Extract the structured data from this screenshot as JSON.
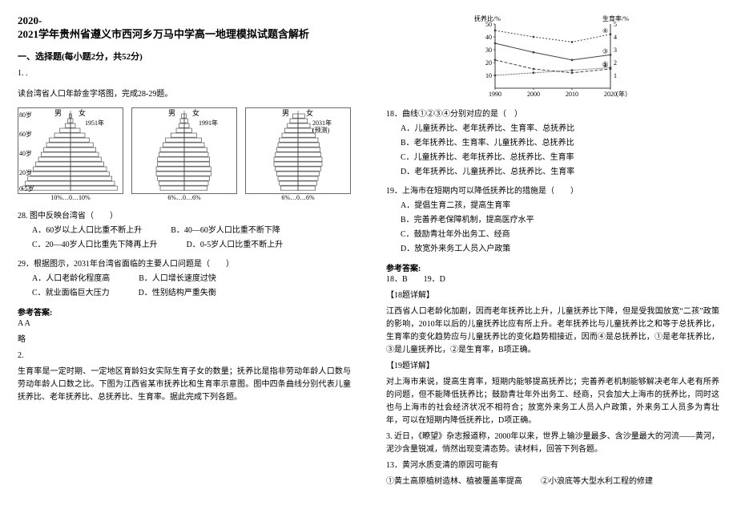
{
  "doc": {
    "title_year": "2020-",
    "title_main": "2021学年贵州省遵义市西河乡万马中学高一地理模拟试题含解析",
    "section1": "一、选择题(每小题2分，共52分)",
    "q1": "1. .",
    "intro_pyramid": "读台湾省人口年龄金字塔图，完成28-29题。",
    "q28": "28. 图中反映台湾省（　　）",
    "q28_A": "A．60岁以上人口比重不断上升",
    "q28_B": "B．40—60岁人口比重不断下降",
    "q28_C": "C．20—40岁人口比重先下降再上升",
    "q28_D": "D．0-5岁人口比重不断上升",
    "q29": "29．根据图示，2031年台湾省面临的主要人口问题是（　　）",
    "q29_A": "A．人口老龄化程度高",
    "q29_B": "B．人口增长速度过快",
    "q29_C": "C．就业面临巨大压力",
    "q29_D": "D．性别结构严重失衡",
    "ans_head": "参考答案:",
    "ans2829": "A  A",
    "ans_略": "略",
    "q2": "2.",
    "q2_text": "生育率是一定时期、一定地区育龄妇女实际生育子女的数量；抚养比是指非劳动年龄人口数与劳动年龄人口数之比。下图为江西省某市抚养比和生育率示意图。图中四条曲线分别代表儿童抚养比、老年抚养比、总抚养比、生育率。据此完成下列各题。",
    "q18": "18．曲线①②③④分别对应的是（　）",
    "q18_A": "A．儿童抚养比、老年抚养比、生育率、总抚养比",
    "q18_B": "B．老年抚养比、生育率、儿童抚养比、总抚养比",
    "q18_C": "C．儿童抚养比、老年抚养比、总抚养比、生育率",
    "q18_D": "D．老年抚养比、儿童抚养比、总抚养比、生育率",
    "q19": "19．上海市在短期内可以降低抚养比的措施是（　　）",
    "q19_A": "A．提倡生育二孩，提高生育率",
    "q19_B": "B．完善养老保障机制，提高医疗水平",
    "q19_C": "C．鼓励青壮年外出务工、经商",
    "q19_D": "D．放宽外来务工人员入户政策",
    "ans_head2": "参考答案:",
    "ans1819": "18．B　　19．D",
    "expl18_h": "【18题详解】",
    "expl18": "江西省人口老龄化加剧，因而老年抚养比上升，儿童抚养比下降，但是受我国放宽“二孩”政策的影响，2010年以后的儿童抚养比应有所上升。老年抚养比与儿童抚养比之和等于总抚养比，生育率的变化趋势应与儿童抚养比的变化趋势相接近，因而④是总抚养比，①是老年抚养比，③是儿童抚养比，②是生育率，B项正确。",
    "expl19_h": "【19题详解】",
    "expl19": "对上海市来说，提高生育率，短期内能够提高抚养比；完善养老机制能够解决老年人老有所养的问题，但不能降低抚养比；鼓励青壮年外出务工、经商，只会加大上海市的抚养比，同时这也与上海市的社会经济状况不相符合；放宽外来务工人员入户政策，外来务工人员多为青壮年，可以在短期内降低抚养比，D项正确。",
    "q3": "3. 近日，《瞭望》杂志报道称，2000年以来，世界上输沙量最多、含沙量最大的河流——黄河，泥沙含量锐减，悄然出现变清态势。读材料，回答下列各题。",
    "q13": "13．黄河水质变清的原因可能有",
    "q13_1": "①黄土高原植树造林、植被覆盖率提高",
    "q13_2": "②小浪底等大型水利工程的修建"
  },
  "pyramids": [
    {
      "year": "1951年",
      "sex_m": "男",
      "sex_f": "女",
      "ages": [
        "80岁",
        "60岁",
        "40岁",
        "20岁",
        "0-5岁"
      ],
      "axis": "10%…0…10%",
      "m": [
        0.5,
        1,
        2,
        4,
        6,
        8,
        9,
        10,
        11,
        12,
        13,
        14,
        15,
        16,
        17,
        18
      ],
      "f": [
        0.4,
        0.9,
        1.8,
        3.6,
        5.4,
        7,
        8.5,
        9.5,
        10.5,
        11.5,
        12.5,
        13.5,
        14.5,
        15.5,
        16.5,
        17.5
      ],
      "bar_color": "#555555",
      "bg": "#ffffff",
      "line": "#444444"
    },
    {
      "year": "1991年",
      "sex_m": "男",
      "sex_f": "女",
      "ages": [
        "",
        "",
        "",
        "",
        ""
      ],
      "axis": "6%…0…6%",
      "m": [
        1,
        1.5,
        2,
        3,
        5,
        7,
        8,
        9,
        9.5,
        10,
        10,
        10.5,
        10.5,
        10,
        9.5,
        9
      ],
      "f": [
        0.8,
        1.3,
        1.8,
        2.8,
        4.6,
        6.5,
        7.5,
        8.5,
        9,
        9.5,
        9.5,
        10,
        10,
        9.5,
        9,
        8.6
      ],
      "bar_color": "#555555",
      "bg": "#ffffff",
      "line": "#444444"
    },
    {
      "year": "2031年\n(预测)",
      "sex_m": "男",
      "sex_f": "女",
      "ages": [
        "",
        "",
        "",
        "",
        ""
      ],
      "axis": "6%…0…6%",
      "m": [
        2,
        3,
        4,
        5,
        6,
        7,
        7.5,
        8,
        8.5,
        9,
        9,
        8.5,
        8,
        7.5,
        7,
        6.5
      ],
      "f": [
        2.5,
        3.5,
        4.5,
        5.5,
        6.5,
        7.5,
        8,
        8.3,
        8.6,
        9,
        9,
        8.6,
        8,
        7.5,
        7,
        6.5
      ],
      "bar_color": "#555555",
      "bg": "#ffffff",
      "line": "#444444"
    }
  ],
  "linechart": {
    "y_label_left": "抚养比/%",
    "y_label_right": "生育率/%",
    "x_label": "（年）",
    "x_ticks": [
      "1990",
      "2000",
      "2010",
      "2020"
    ],
    "y_ticks_left": [
      10,
      20,
      30,
      40,
      50
    ],
    "y_ticks_right": [
      1,
      2,
      3,
      4,
      5
    ],
    "series": [
      {
        "id": "④",
        "dash": "2,2",
        "color": "#444",
        "pts": [
          [
            1990,
            45
          ],
          [
            2000,
            40
          ],
          [
            2010,
            36
          ],
          [
            2020,
            42
          ]
        ]
      },
      {
        "id": "③",
        "dash": "",
        "color": "#444",
        "pts": [
          [
            1990,
            35
          ],
          [
            2000,
            28
          ],
          [
            2010,
            22
          ],
          [
            2020,
            26
          ]
        ]
      },
      {
        "id": "②",
        "dash": "4,2",
        "color": "#444",
        "pts": [
          [
            1990,
            22
          ],
          [
            2000,
            15
          ],
          [
            2010,
            12
          ],
          [
            2020,
            15
          ]
        ]
      },
      {
        "id": "①",
        "dash": "1,1",
        "color": "#444",
        "pts": [
          [
            1990,
            10
          ],
          [
            2000,
            12
          ],
          [
            2010,
            14
          ],
          [
            2020,
            16
          ]
        ]
      }
    ],
    "xlim": [
      1990,
      2020
    ],
    "ylim": [
      0,
      50
    ],
    "grid_color": "#cccccc",
    "axis_color": "#000000",
    "bg": "#ffffff",
    "font_size": 8
  }
}
